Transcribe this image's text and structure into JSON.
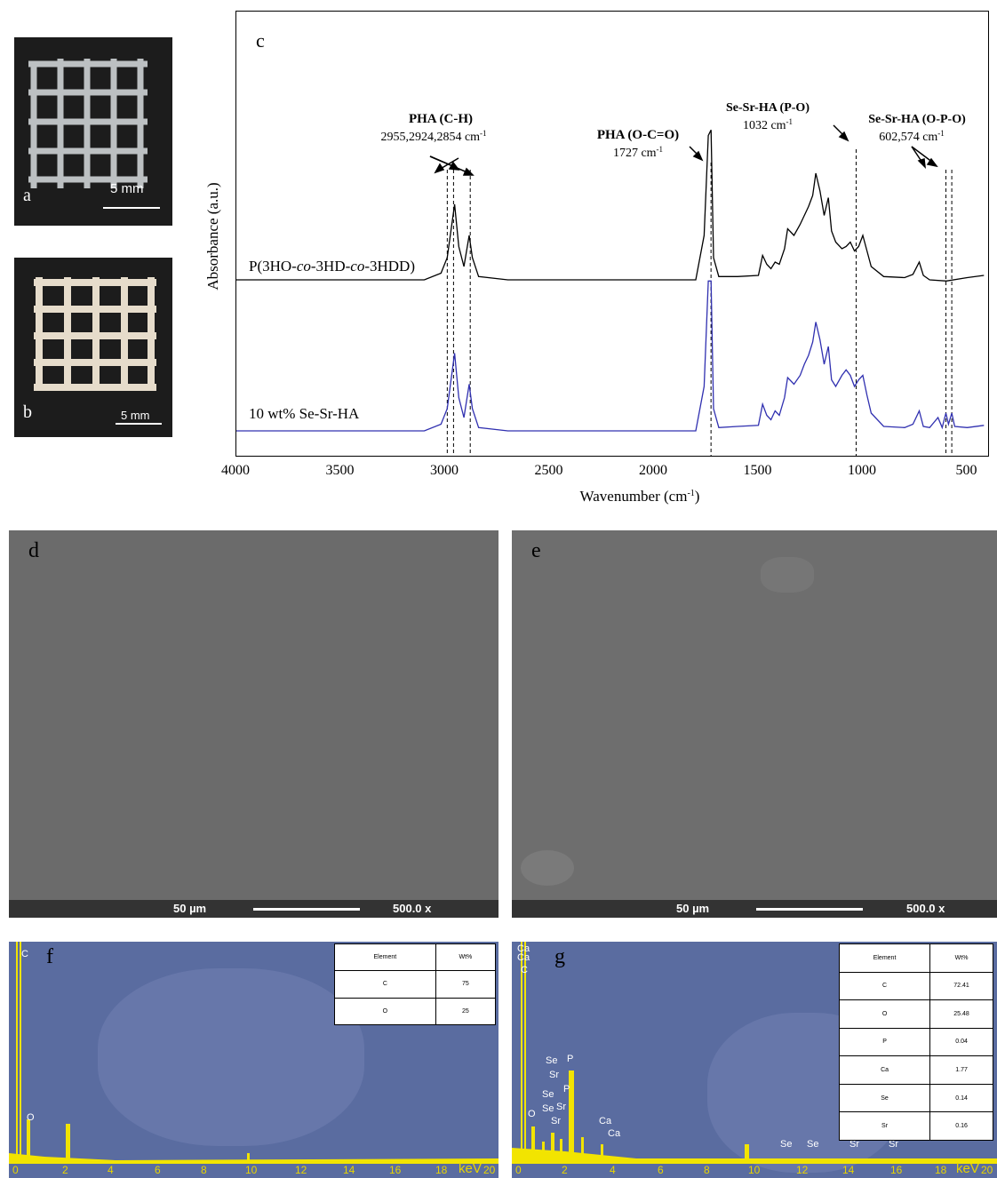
{
  "panel_a": {
    "label": "a",
    "scale": "5 mm"
  },
  "panel_b": {
    "label": "b",
    "scale": "5 mm"
  },
  "panel_c": {
    "label": "c"
  },
  "chart_data": {
    "type": "line",
    "xlabel": "Wavenumber (cm-1)",
    "ylabel": "Absorbance (a.u.)",
    "xlim": [
      4000,
      400
    ],
    "x_reversed": true,
    "x_ticks": [
      4000,
      3500,
      3000,
      2500,
      2000,
      1500,
      1000,
      500
    ],
    "series": [
      {
        "name": "P(3HO-co-3HD-co-3HDD)",
        "color": "#000000",
        "points": [
          [
            4000,
            0
          ],
          [
            3100,
            0
          ],
          [
            3020,
            6
          ],
          [
            2990,
            20
          ],
          [
            2955,
            68
          ],
          [
            2935,
            30
          ],
          [
            2910,
            12
          ],
          [
            2885,
            40
          ],
          [
            2870,
            20
          ],
          [
            2840,
            3
          ],
          [
            2700,
            0
          ],
          [
            1800,
            0
          ],
          [
            1760,
            40
          ],
          [
            1740,
            130
          ],
          [
            1727,
            135
          ],
          [
            1715,
            20
          ],
          [
            1690,
            3
          ],
          [
            1600,
            3
          ],
          [
            1500,
            4
          ],
          [
            1480,
            22
          ],
          [
            1460,
            14
          ],
          [
            1440,
            10
          ],
          [
            1420,
            16
          ],
          [
            1400,
            14
          ],
          [
            1375,
            28
          ],
          [
            1360,
            46
          ],
          [
            1330,
            40
          ],
          [
            1300,
            50
          ],
          [
            1280,
            58
          ],
          [
            1260,
            66
          ],
          [
            1240,
            76
          ],
          [
            1225,
            96
          ],
          [
            1205,
            80
          ],
          [
            1185,
            58
          ],
          [
            1165,
            74
          ],
          [
            1150,
            44
          ],
          [
            1130,
            34
          ],
          [
            1100,
            28
          ],
          [
            1080,
            30
          ],
          [
            1060,
            34
          ],
          [
            1040,
            26
          ],
          [
            1020,
            30
          ],
          [
            1000,
            40
          ],
          [
            980,
            26
          ],
          [
            960,
            12
          ],
          [
            900,
            3
          ],
          [
            800,
            2
          ],
          [
            760,
            5
          ],
          [
            730,
            16
          ],
          [
            710,
            4
          ],
          [
            680,
            0
          ],
          [
            600,
            -1
          ],
          [
            500,
            2
          ],
          [
            420,
            4
          ]
        ]
      },
      {
        "name": "10 wt% Se-Sr-HA",
        "color": "#3030b0",
        "points": [
          [
            4000,
            0
          ],
          [
            3100,
            0
          ],
          [
            3020,
            6
          ],
          [
            2990,
            20
          ],
          [
            2955,
            70
          ],
          [
            2935,
            30
          ],
          [
            2910,
            12
          ],
          [
            2885,
            42
          ],
          [
            2870,
            20
          ],
          [
            2840,
            3
          ],
          [
            2700,
            0
          ],
          [
            1800,
            0
          ],
          [
            1760,
            40
          ],
          [
            1740,
            135
          ],
          [
            1727,
            135
          ],
          [
            1715,
            20
          ],
          [
            1690,
            3
          ],
          [
            1600,
            4
          ],
          [
            1500,
            5
          ],
          [
            1480,
            24
          ],
          [
            1460,
            14
          ],
          [
            1440,
            10
          ],
          [
            1420,
            18
          ],
          [
            1400,
            14
          ],
          [
            1375,
            30
          ],
          [
            1360,
            48
          ],
          [
            1330,
            42
          ],
          [
            1300,
            50
          ],
          [
            1280,
            60
          ],
          [
            1260,
            68
          ],
          [
            1240,
            80
          ],
          [
            1225,
            98
          ],
          [
            1205,
            82
          ],
          [
            1185,
            60
          ],
          [
            1165,
            76
          ],
          [
            1150,
            46
          ],
          [
            1130,
            40
          ],
          [
            1100,
            50
          ],
          [
            1080,
            55
          ],
          [
            1060,
            50
          ],
          [
            1040,
            40
          ],
          [
            1020,
            46
          ],
          [
            1000,
            50
          ],
          [
            980,
            32
          ],
          [
            960,
            16
          ],
          [
            900,
            4
          ],
          [
            800,
            3
          ],
          [
            760,
            6
          ],
          [
            730,
            18
          ],
          [
            710,
            4
          ],
          [
            680,
            3
          ],
          [
            640,
            12
          ],
          [
            620,
            3
          ],
          [
            602,
            16
          ],
          [
            590,
            6
          ],
          [
            574,
            16
          ],
          [
            560,
            4
          ],
          [
            500,
            3
          ],
          [
            420,
            5
          ]
        ]
      }
    ],
    "annotations": [
      {
        "title": "PHA (C-H)",
        "value": "2955,2924,2854 cm-1"
      },
      {
        "title": "PHA (O-C=O)",
        "value": "1727 cm-1"
      },
      {
        "title": "Se-Sr-HA (P-O)",
        "value": "1032 cm-1"
      },
      {
        "title": "Se-Sr-HA (O-P-O)",
        "value": "602,574 cm-1"
      }
    ],
    "dashed_lines": [
      2990,
      2960,
      2880,
      1727,
      1032,
      602,
      574
    ]
  },
  "panel_d": {
    "label": "d",
    "scale": "50 µm",
    "mag": "500.0 x"
  },
  "panel_e": {
    "label": "e",
    "scale": "50 µm",
    "mag": "500.0 x"
  },
  "panel_f": {
    "label": "f",
    "table_header": [
      "Element",
      "Wt%"
    ],
    "rows": [
      [
        "C",
        "75"
      ],
      [
        "O",
        "25"
      ]
    ],
    "ticks": [
      "0",
      "2",
      "4",
      "6",
      "8",
      "10",
      "12",
      "14",
      "16",
      "18"
    ],
    "unit": "keV",
    "unit_end": "20",
    "peaks": [
      "C",
      "O"
    ]
  },
  "panel_g": {
    "label": "g",
    "table_header": [
      "Element",
      "Wt%"
    ],
    "rows": [
      [
        "C",
        "72.41"
      ],
      [
        "O",
        "25.48"
      ],
      [
        "P",
        "0.04"
      ],
      [
        "Ca",
        "1.77"
      ],
      [
        "Se",
        "0.14"
      ],
      [
        "Sr",
        "0.16"
      ]
    ],
    "ticks": [
      "0",
      "2",
      "4",
      "6",
      "8",
      "10",
      "12",
      "14",
      "16",
      "18"
    ],
    "unit": "keV",
    "unit_end": "20",
    "peaks": [
      "Ca",
      "Ca",
      "C",
      "O",
      "Se",
      "Sr",
      "Se",
      "Se",
      "Sr",
      "Sr",
      "P",
      "P",
      "Ca",
      "Ca",
      "Se",
      "Se",
      "Sr",
      "Sr",
      "Sr"
    ]
  }
}
